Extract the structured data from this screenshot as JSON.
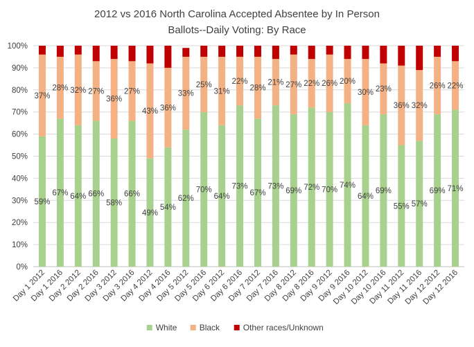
{
  "chart_data": {
    "type": "bar",
    "stacked": true,
    "title_lines": [
      "2012 vs 2016 North Carolina Accepted Absentee by In Person",
      "Ballots--Daily Voting: By Race"
    ],
    "categories": [
      "Day 1 2012",
      "Day 1 2016",
      "Day 2 2012",
      "Day 2 2016",
      "Day 3 2012",
      "Day 3 2016",
      "Day 4 2012",
      "Day 4 2016",
      "Day 5 2012",
      "Day 5 2016",
      "Day 6 2012",
      "Day 6 2016",
      "Day 7 2012",
      "Day 7 2016",
      "Day 8 2012",
      "Day 8 2016",
      "Day 9 2012",
      "Day 9 2016",
      "Day 10 2012",
      "Day 10 2016",
      "Day 11 2012",
      "Day 11 2016",
      "Day 12 2012",
      "Day 12 2016"
    ],
    "series": [
      {
        "name": "White",
        "color": "#a9d18e",
        "values": [
          59,
          67,
          64,
          66,
          58,
          66,
          49,
          54,
          62,
          70,
          64,
          73,
          67,
          73,
          69,
          72,
          70,
          74,
          64,
          69,
          55,
          57,
          69,
          71
        ],
        "labels": [
          "59%",
          "67%",
          "64%",
          "66%",
          "58%",
          "66%",
          "49%",
          "54%",
          "62%",
          "70%",
          "64%",
          "73%",
          "67%",
          "73%",
          "69%",
          "72%",
          "70%",
          "74%",
          "64%",
          "69%",
          "55%",
          "57%",
          "69%",
          "71%"
        ]
      },
      {
        "name": "Black",
        "color": "#f4b183",
        "values": [
          37,
          28,
          32,
          27,
          36,
          27,
          43,
          36,
          33,
          25,
          31,
          22,
          28,
          21,
          27,
          22,
          26,
          20,
          30,
          23,
          36,
          32,
          26,
          22
        ],
        "labels": [
          "37%",
          "28%",
          "32%",
          "27%",
          "36%",
          "27%",
          "43%",
          "36%",
          "33%",
          "25%",
          "31%",
          "22%",
          "28%",
          "21%",
          "27%",
          "22%",
          "26%",
          "20%",
          "30%",
          "23%",
          "36%",
          "32%",
          "26%",
          "22%"
        ]
      },
      {
        "name": "Other races/Unknown",
        "color": "#c00000",
        "values": [
          4,
          5,
          4,
          7,
          6,
          7,
          8,
          10,
          4,
          5,
          5,
          5,
          5,
          6,
          4,
          6,
          4,
          6,
          6,
          8,
          9,
          11,
          5,
          7
        ]
      }
    ],
    "y_ticks": [
      "0%",
      "10%",
      "20%",
      "30%",
      "40%",
      "50%",
      "60%",
      "70%",
      "80%",
      "90%",
      "100%"
    ],
    "ylim": [
      0,
      100
    ],
    "grid": true,
    "legend_position": "bottom"
  }
}
